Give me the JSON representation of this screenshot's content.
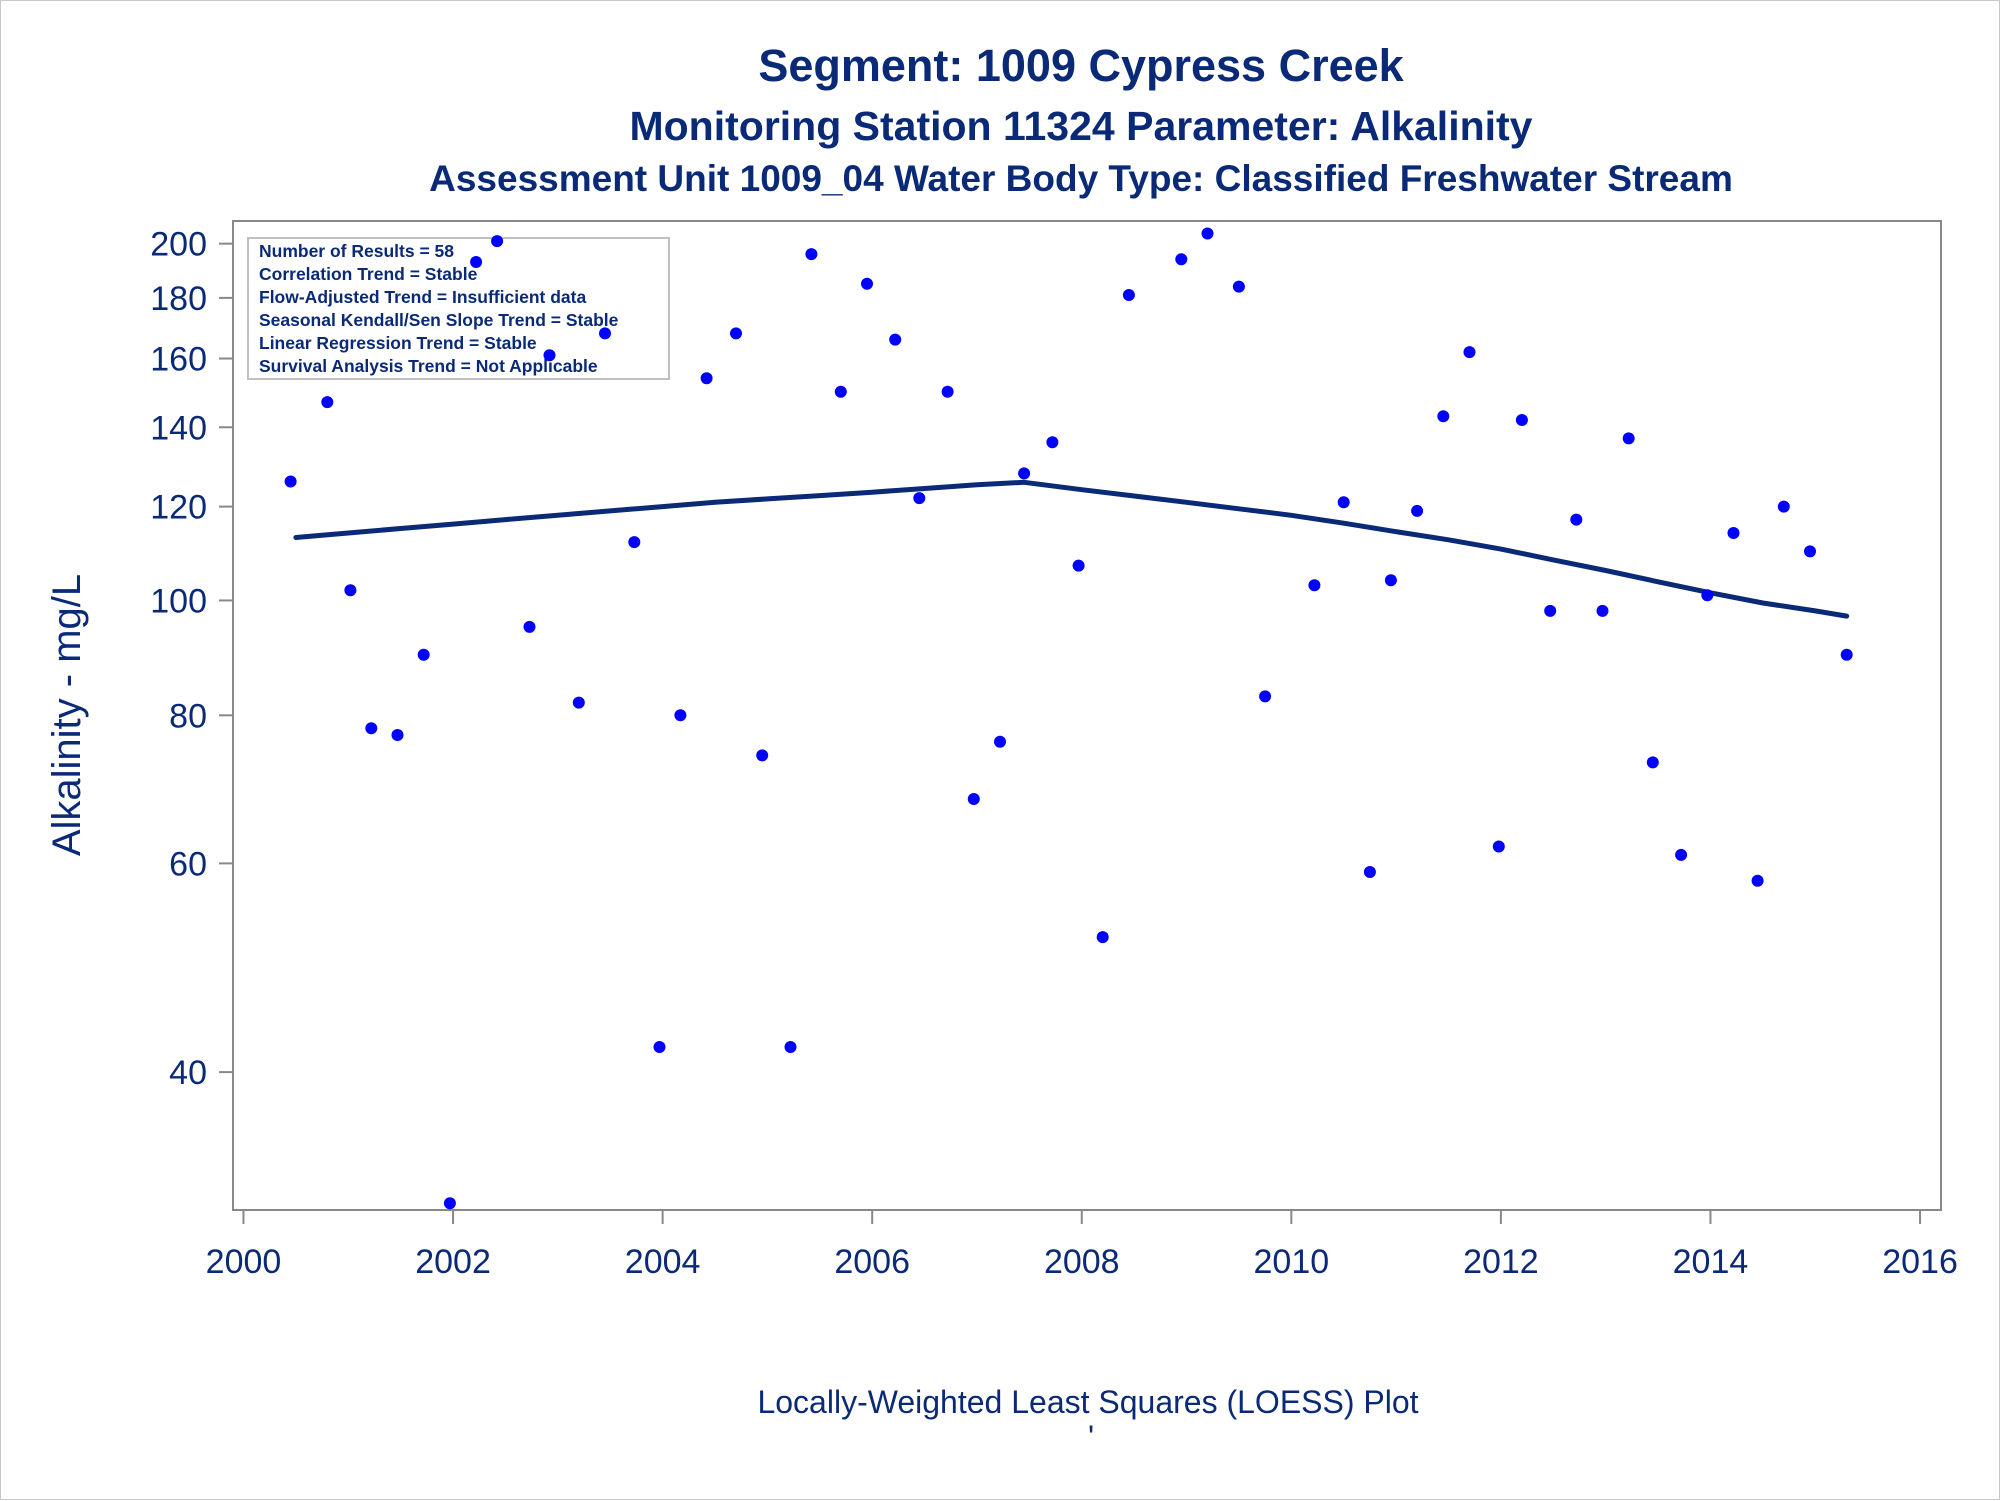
{
  "chart_data": {
    "type": "scatter",
    "title": "Segment: 1009  Cypress Creek",
    "subtitle": "Monitoring Station 11324 Parameter: Alkalinity",
    "subtitle2": "Assessment Unit 1009_04   Water Body Type: Classified Freshwater Stream",
    "xlabel": "",
    "ylabel": "Alkalinity - mg/L",
    "footnote": "Locally-Weighted Least Squares (LOESS) Plot",
    "footnote_mark": "'",
    "y_scale": "log",
    "xlim": [
      1999.9,
      2016.2
    ],
    "ylim": [
      30.6,
      209
    ],
    "x_ticks": [
      "2000",
      "2002",
      "2004",
      "2006",
      "2008",
      "2010",
      "2012",
      "2014",
      "2016"
    ],
    "y_ticks": [
      "40",
      "60",
      "80",
      "100",
      "120",
      "140",
      "160",
      "180",
      "200"
    ],
    "grid": false,
    "legend": "none",
    "stats_box": {
      "position": "top-left",
      "lines": [
        "Number of Results = 58",
        "Correlation Trend = Stable",
        "Flow-Adjusted Trend = Insufficient data",
        "Seasonal Kendall/Sen Slope Trend = Stable",
        "Linear Regression Trend = Stable",
        "Survival Analysis Trend = Not Applicable"
      ]
    },
    "colors": {
      "points": "#0000ff",
      "loess": "#0a2a78",
      "text": "#0a2a78",
      "axis": "#888888"
    },
    "series": [
      {
        "kind": "points",
        "x": [
          2000.45,
          2000.8,
          2001.02,
          2001.22,
          2001.47,
          2001.72,
          2001.97,
          2002.22,
          2002.42,
          2002.73,
          2002.92,
          2003.2,
          2003.45,
          2003.73,
          2003.97,
          2004.17,
          2004.42,
          2004.7,
          2004.95,
          2005.22,
          2005.42,
          2005.7,
          2005.95,
          2006.22,
          2006.45,
          2006.72,
          2006.97,
          2007.22,
          2007.45,
          2007.72,
          2007.97,
          2008.2,
          2008.45,
          2008.95,
          2009.2,
          2009.5,
          2009.75,
          2010.22,
          2010.5,
          2010.75,
          2010.95,
          2011.2,
          2011.45,
          2011.7,
          2011.98,
          2012.2,
          2012.47,
          2012.72,
          2012.97,
          2013.22,
          2013.45,
          2013.72,
          2013.97,
          2014.22,
          2014.45,
          2014.7,
          2014.95,
          2015.3
        ],
        "y": [
          126,
          147,
          102,
          78,
          77,
          90,
          31,
          193,
          201,
          95,
          161,
          82,
          168,
          112,
          42,
          80,
          154,
          168,
          74,
          42,
          196,
          150,
          185,
          166,
          122,
          150,
          68,
          76,
          128,
          136,
          107,
          52,
          181,
          194,
          204,
          184,
          83,
          103,
          121,
          59,
          104,
          119,
          143,
          162,
          62,
          142,
          98,
          117,
          98,
          137,
          73,
          61,
          101,
          114,
          58,
          120,
          110,
          90
        ]
      },
      {
        "kind": "loess",
        "x": [
          2000.5,
          2001.0,
          2001.5,
          2002.0,
          2002.5,
          2003.0,
          2003.5,
          2004.0,
          2004.5,
          2005.0,
          2005.5,
          2006.0,
          2006.5,
          2007.0,
          2007.45,
          2008.0,
          2008.5,
          2009.0,
          2009.5,
          2010.0,
          2010.5,
          2011.0,
          2011.5,
          2012.0,
          2012.5,
          2013.0,
          2013.5,
          2014.0,
          2014.5,
          2015.0,
          2015.3
        ],
        "y": [
          113,
          114,
          115,
          116,
          117,
          118,
          119,
          120,
          121,
          121.8,
          122.6,
          123.4,
          124.3,
          125.2,
          125.8,
          124,
          122.5,
          121,
          119.5,
          118,
          116.2,
          114.3,
          112.5,
          110.5,
          108.2,
          106,
          103.7,
          101.5,
          99.5,
          98,
          97
        ]
      }
    ]
  }
}
